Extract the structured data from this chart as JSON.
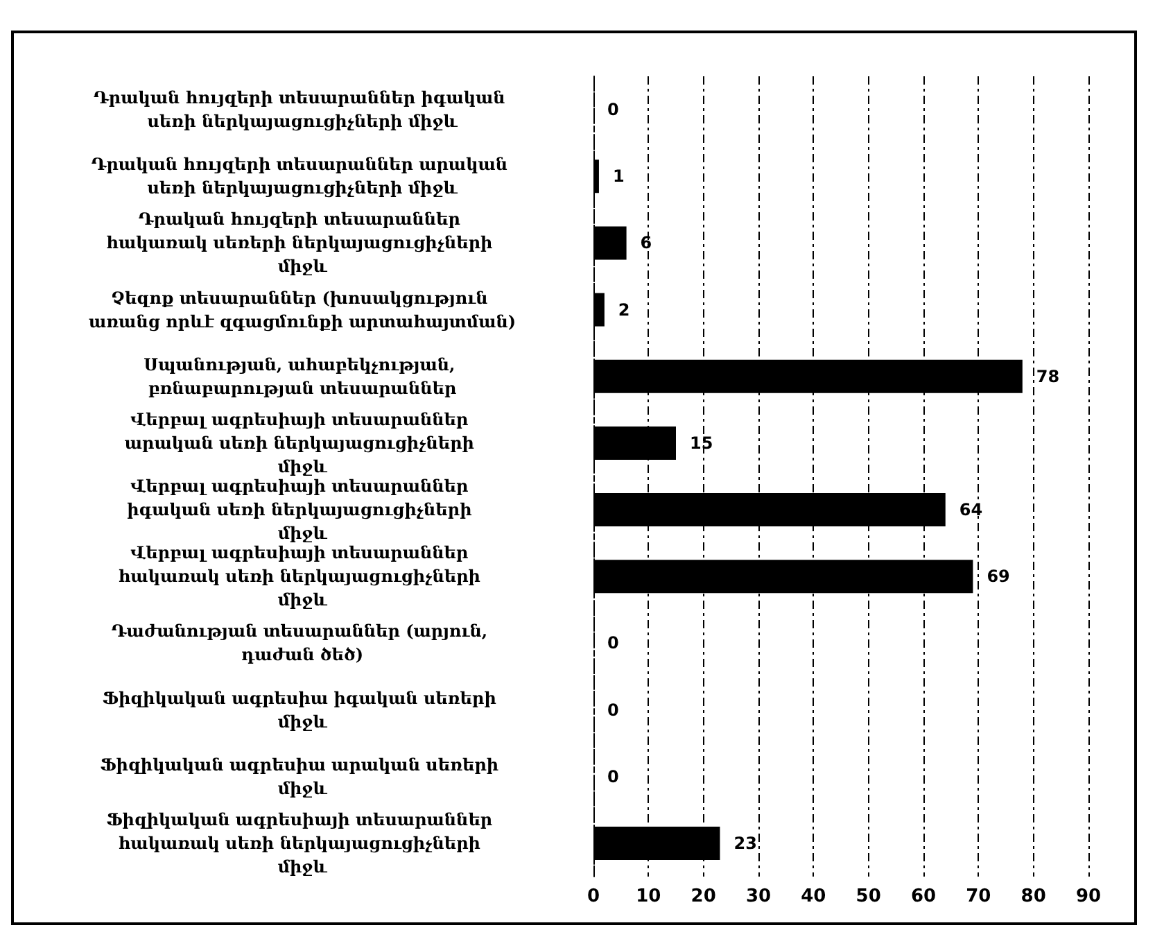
{
  "chart_data": {
    "type": "bar",
    "orientation": "horizontal",
    "categories": [
      "Դրական հույզերի տեսարաններ իգական սեռի ներկայացուցիչների միջև",
      "Դրական հույզերի տեսարաններ արական սեռի ներկայացուցիչների միջև",
      "Դրական հույզերի տեսարաններ հակառակ սեռերի ներկայացուցիչների միջև",
      "Չեզոք տեսարաններ (խոսակցություն առանց որևէ զգացմունքի արտահայտման)",
      "Սպանության, ահաբեկչության, բռնաբարության տեսարաններ",
      "Վերբալ ագրեսիայի տեսարաններ արական սեռի ներկայացուցիչների միջև",
      "Վերբալ ագրեսիայի տեսարաններ իգական սեռի ներկայացուցիչների միջև",
      "Վերբալ ագրեսիայի տեսարաններ հակառակ սեռի ներկայացուցիչների միջև",
      "Դաժանության տեսարաններ (արյուն, դաժան ծեծ)",
      "Ֆիզիկական ագրեսիա իգական սեռերի միջև",
      "Ֆիզիկական ագրեսիա արական սեռերի միջև",
      "Ֆիզիկական ագրեսիայի տեսարաններ հակառակ սեռի ներկայացուցիչների միջև"
    ],
    "values": [
      0,
      1,
      6,
      2,
      78,
      15,
      64,
      69,
      0,
      0,
      0,
      23
    ],
    "color": "#000000",
    "xlim": [
      0,
      90
    ],
    "xticks": [
      0,
      10,
      20,
      30,
      40,
      50,
      60,
      70,
      80,
      90
    ],
    "grid": "x",
    "data_labels": true
  }
}
